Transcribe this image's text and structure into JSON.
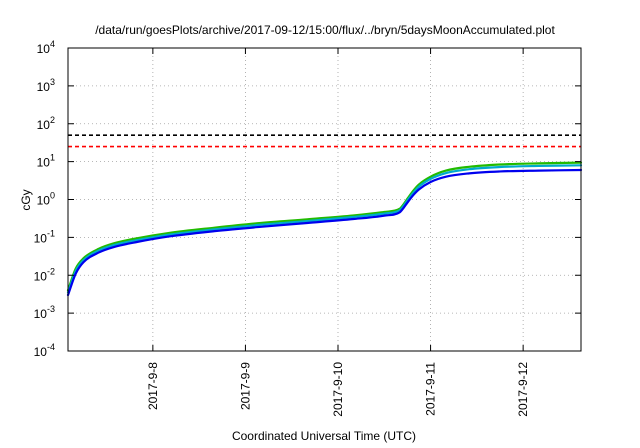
{
  "chart_data": {
    "type": "line",
    "title": "/data/run/goesPlots/archive/2017-09-12/15:00/flux/../bryn/5daysMoonAccumulated.plot",
    "xlabel": "Coordinated Universal Time (UTC)",
    "ylabel": "cGy",
    "yscale": "log",
    "ylim": [
      0.0001,
      10000
    ],
    "xlim": [
      "2017-09-07 02:00",
      "2017-09-12 15:00"
    ],
    "grid": true,
    "legend": "none",
    "x_ticks": [
      "2017-9-8",
      "2017-9-9",
      "2017-9-10",
      "2017-9-11",
      "2017-9-12"
    ],
    "x_tick_dates": [
      "2017-09-08 00:00",
      "2017-09-09 00:00",
      "2017-09-10 00:00",
      "2017-09-11 00:00",
      "2017-09-12 00:00"
    ],
    "y_ticks": [
      {
        "value": 0.0001,
        "base": "10",
        "exp": "-4"
      },
      {
        "value": 0.001,
        "base": "10",
        "exp": "-3"
      },
      {
        "value": 0.01,
        "base": "10",
        "exp": "-2"
      },
      {
        "value": 0.1,
        "base": "10",
        "exp": "-1"
      },
      {
        "value": 1,
        "base": "10",
        "exp": "0"
      },
      {
        "value": 10,
        "base": "10",
        "exp": "1"
      },
      {
        "value": 100,
        "base": "10",
        "exp": "2"
      },
      {
        "value": 1000,
        "base": "10",
        "exp": "3"
      },
      {
        "value": 10000,
        "base": "10",
        "exp": "4"
      }
    ],
    "reference_lines": [
      {
        "value": 50,
        "color": "#000000",
        "style": "dashed"
      },
      {
        "value": 25,
        "color": "#ff0000",
        "style": "dashed"
      }
    ],
    "x": [
      "2017-09-07 02:00",
      "2017-09-07 04:00",
      "2017-09-07 06:00",
      "2017-09-07 10:00",
      "2017-09-07 14:00",
      "2017-09-07 20:00",
      "2017-09-08 04:00",
      "2017-09-08 16:00",
      "2017-09-09 04:00",
      "2017-09-09 16:00",
      "2017-09-10 04:00",
      "2017-09-10 12:00",
      "2017-09-10 16:00",
      "2017-09-10 17:00",
      "2017-09-10 18:00",
      "2017-09-10 19:30",
      "2017-09-10 21:00",
      "2017-09-11 00:00",
      "2017-09-11 04:00",
      "2017-09-11 10:00",
      "2017-09-11 18:00",
      "2017-09-12 04:00",
      "2017-09-12 15:00"
    ],
    "series": [
      {
        "color": "#22bb00",
        "values": [
          0.004,
          0.015,
          0.028,
          0.05,
          0.07,
          0.095,
          0.13,
          0.18,
          0.24,
          0.3,
          0.38,
          0.47,
          0.57,
          0.75,
          1.05,
          1.7,
          2.5,
          4.0,
          5.8,
          7.3,
          8.4,
          9.0,
          9.4
        ]
      },
      {
        "color": "#00aacc",
        "values": [
          0.0035,
          0.013,
          0.025,
          0.045,
          0.063,
          0.085,
          0.117,
          0.163,
          0.215,
          0.27,
          0.345,
          0.425,
          0.52,
          0.68,
          0.95,
          1.5,
          2.2,
          3.5,
          5.0,
          6.3,
          7.2,
          7.7,
          8.0
        ]
      },
      {
        "color": "#0000ee",
        "values": [
          0.003,
          0.011,
          0.022,
          0.04,
          0.056,
          0.076,
          0.105,
          0.146,
          0.19,
          0.24,
          0.305,
          0.375,
          0.46,
          0.6,
          0.83,
          1.3,
          1.85,
          2.9,
          4.0,
          4.9,
          5.5,
          5.8,
          6.0
        ]
      }
    ]
  }
}
